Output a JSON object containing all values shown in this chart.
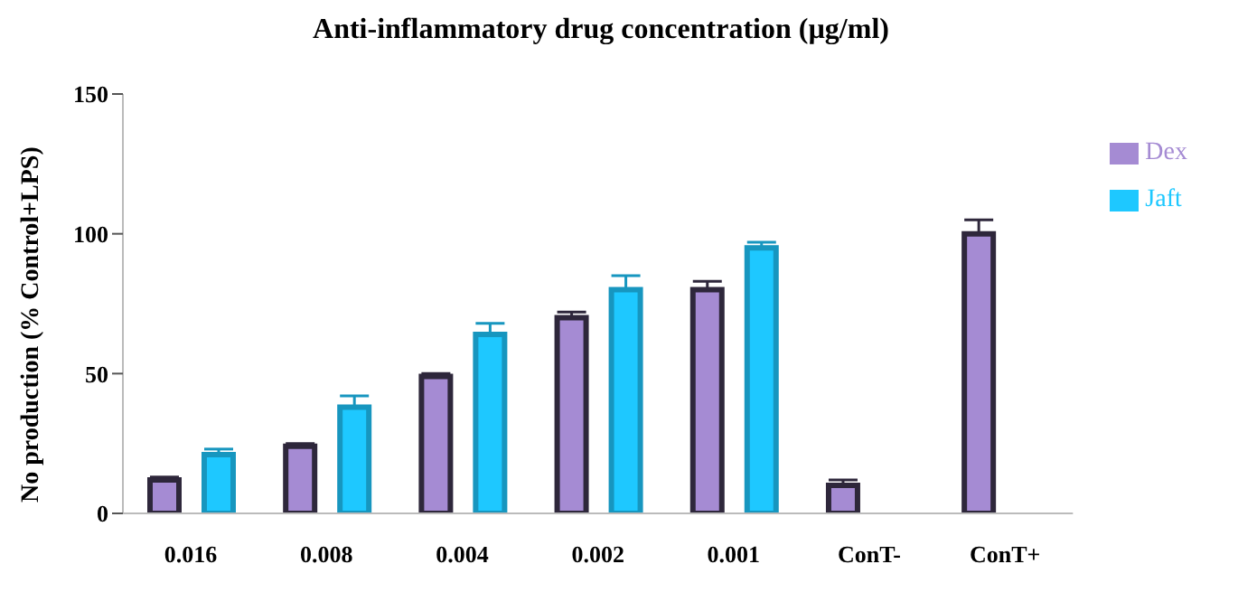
{
  "chart_data": {
    "type": "bar",
    "title": "Anti-inflammatory drug concentration (µg/ml)",
    "ylabel": "No production (% Control+LPS)",
    "categories": [
      "0.016",
      "0.008",
      "0.004",
      "0.002",
      "0.001",
      "ConT-",
      "ConT+"
    ],
    "series": [
      {
        "name": "Dex",
        "color": "#a58bd3",
        "values": [
          12,
          24,
          49,
          70,
          80,
          10,
          100
        ],
        "errors": [
          1,
          1,
          1,
          2,
          3,
          2,
          5
        ]
      },
      {
        "name": "Jaft",
        "color": "#1ec8ff",
        "values": [
          21,
          38,
          64,
          80,
          95,
          null,
          null
        ],
        "errors": [
          2,
          4,
          4,
          5,
          2,
          null,
          null
        ]
      }
    ],
    "ylim": [
      0,
      150
    ],
    "yticks": [
      0,
      50,
      100,
      150
    ],
    "grid": false,
    "legend": "top right"
  }
}
